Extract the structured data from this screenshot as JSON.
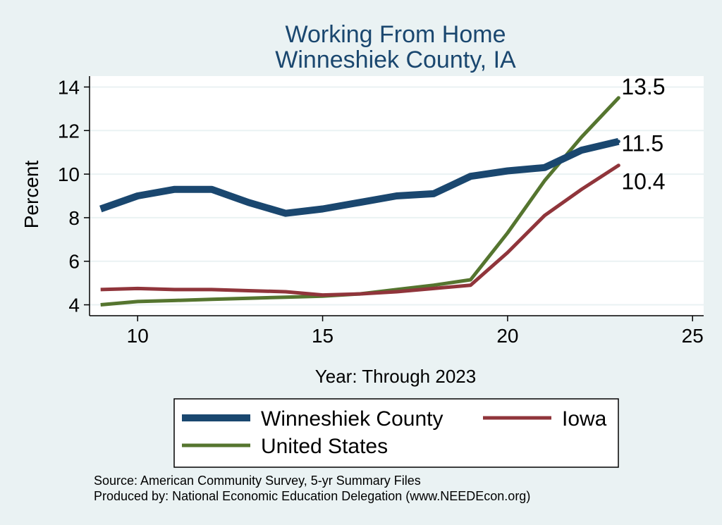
{
  "chart_data": {
    "type": "line",
    "title": "Working From Home",
    "subtitle": "Winneshiek County, IA",
    "xlabel": "Year: Through 2023",
    "ylabel": "Percent",
    "xlim": [
      8.7,
      25.3
    ],
    "ylim": [
      3.5,
      14.5
    ],
    "x_ticks": [
      10,
      15,
      20,
      25
    ],
    "y_ticks": [
      4,
      6,
      8,
      10,
      12,
      14
    ],
    "grid": true,
    "legend_position": "bottom",
    "series": [
      {
        "name": "Winneshiek County",
        "color": "#1a476f",
        "width": 10,
        "x": [
          9,
          10,
          11,
          12,
          13,
          14,
          15,
          16,
          17,
          18,
          19,
          20,
          21,
          22,
          23
        ],
        "y": [
          8.4,
          9.0,
          9.3,
          9.3,
          8.7,
          8.2,
          8.4,
          8.7,
          9.0,
          9.1,
          9.9,
          10.15,
          10.3,
          11.1,
          11.5
        ],
        "end_label": "11.5"
      },
      {
        "name": "Iowa",
        "color": "#90353b",
        "width": 5,
        "x": [
          9,
          10,
          11,
          12,
          13,
          14,
          15,
          16,
          17,
          18,
          19,
          20,
          21,
          22,
          23
        ],
        "y": [
          4.7,
          4.75,
          4.7,
          4.7,
          4.65,
          4.6,
          4.45,
          4.5,
          4.6,
          4.75,
          4.9,
          6.4,
          8.1,
          9.3,
          10.4
        ],
        "end_label": "10.4"
      },
      {
        "name": "United States",
        "color": "#55752f",
        "width": 5,
        "x": [
          9,
          10,
          11,
          12,
          13,
          14,
          15,
          16,
          17,
          18,
          19,
          20,
          21,
          22,
          23
        ],
        "y": [
          4.0,
          4.15,
          4.2,
          4.25,
          4.3,
          4.35,
          4.4,
          4.5,
          4.7,
          4.9,
          5.15,
          7.3,
          9.7,
          11.7,
          13.5
        ],
        "end_label": "13.5"
      }
    ],
    "source_lines": [
      "Source: American Community Survey, 5-yr Summary Files",
      "Produced by: National Economic Education Delegation (www.NEEDEcon.org)"
    ]
  },
  "colors": {
    "background": "#eaf2f3",
    "plot_background": "#ffffff",
    "title": "#1a476f",
    "grid": "#eaf2f3"
  }
}
